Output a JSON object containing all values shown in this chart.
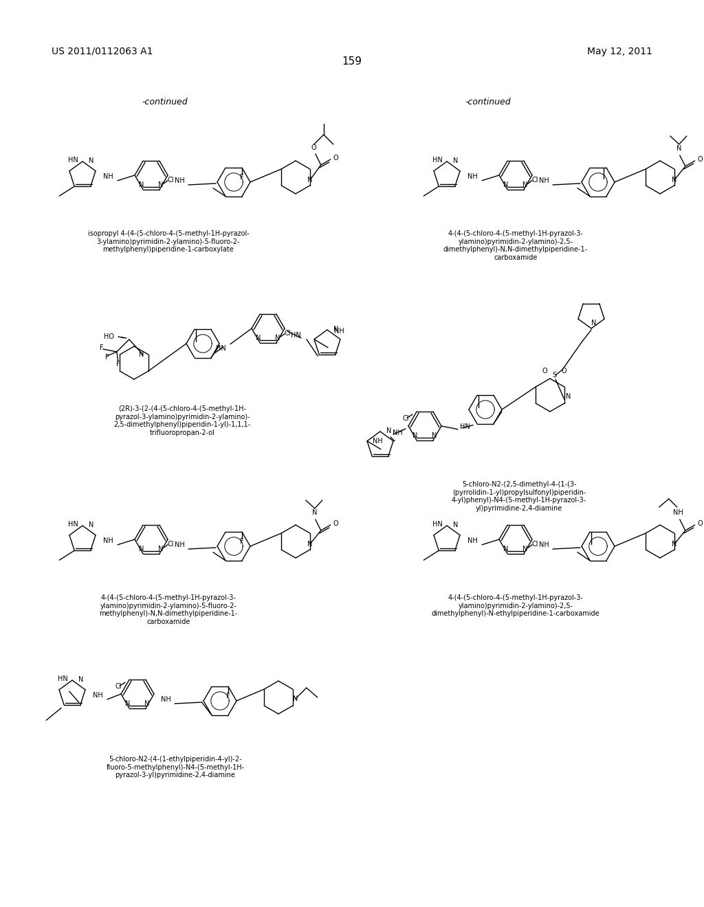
{
  "background_color": "#ffffff",
  "page_number": "159",
  "header_left": "US 2011/0112063 A1",
  "header_right": "May 12, 2011",
  "continued_left": "-continued",
  "continued_right": "-continued",
  "caption1": "isopropyl 4-(4-(5-chloro-4-(5-methyl-1H-pyrazol-\n3-ylamino)pyrimidin-2-ylamino)-5-fluoro-2-\nmethylphenyl)piperidine-1-carboxylate",
  "caption2": "4-(4-(5-chloro-4-(5-methyl-1H-pyrazol-3-\nylamino)pyrimidin-2-ylamino)-2,5-\ndimethylphenyl)-N,N-dimethylpiperidine-1-\ncarboxamide",
  "caption3": "(2R)-3-(2-(4-(5-chloro-4-(5-methyl-1H-\npyrazol-3-ylamino)pyrimidin-2-ylamino)-\n2,5-dimethylphenyl)piperidin-1-yl)-1,1,1-\ntrifluoropropan-2-ol",
  "caption4": "5-chloro-N2-(2,5-dimethyl-4-(1-(3-\n(pyrrolidin-1-yl)propylsulfonyl)piperidin-\n4-yl)phenyl)-N4-(5-methyl-1H-pyrazol-3-\nyl)pyrimidine-2,4-diamine",
  "caption5": "4-(4-(5-chloro-4-(5-methyl-1H-pyrazol-3-\nylamino)pyrimidin-2-ylamino)-5-fluoro-2-\nmethylphenyl)-N,N-dimethylpiperidine-1-\ncarboxamide",
  "caption6": "5-chloro-N2-(4-(1-ethylpiperidin-4-yl)-2-\nfluoro-5-methylphenyl)-N4-(5-methyl-1H-\npyrazol-3-yl)pyrimidine-2,4-diamine",
  "caption7": "4-(4-(5-chloro-4-(5-methyl-1H-pyrazol-3-\nylamino)pyrimidin-2-ylamino)-2,5-\ndimethylphenyl)-N-ethylpiperidine-1-carboxamide"
}
